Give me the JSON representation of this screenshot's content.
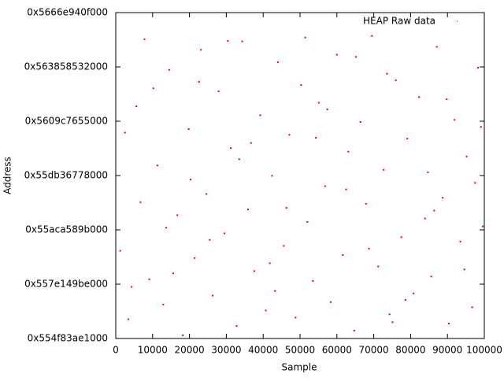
{
  "chart_data": {
    "type": "scatter",
    "x_label": "Sample",
    "y_label": "Address",
    "xlim": [
      0,
      100000
    ],
    "xticks": [
      0,
      10000,
      20000,
      30000,
      40000,
      50000,
      60000,
      70000,
      80000,
      90000,
      100000
    ],
    "ylim": [
      93800000000000,
      95000000000000
    ],
    "yticks": [
      {
        "value": 93800000000000,
        "label": "0x554f83ae1000"
      },
      {
        "value": 94000000000000,
        "label": "0x557e149be000"
      },
      {
        "value": 94200000000000,
        "label": "0x55aca589b000"
      },
      {
        "value": 94400000000000,
        "label": "0x55db36778000"
      },
      {
        "value": 94600000000000,
        "label": "0x5609c7655000"
      },
      {
        "value": 94800000000000,
        "label": "0x563858532000"
      },
      {
        "value": 95000000000000,
        "label": "0x5666e940f000"
      }
    ],
    "legend": "top-right",
    "series": [
      {
        "name": "HEAP Raw data",
        "color": "#ff0000",
        "x": [
          1200,
          3400,
          5600,
          7800,
          9100,
          11300,
          12900,
          14500,
          16700,
          18200,
          19800,
          21400,
          23100,
          24600,
          26300,
          27900,
          29500,
          31200,
          32800,
          34300,
          35900,
          37600,
          39200,
          40700,
          42400,
          44000,
          45600,
          47100,
          48800,
          50300,
          52000,
          53500,
          55100,
          56800,
          58300,
          60000,
          61600,
          63100,
          64700,
          66400,
          67900,
          69500,
          71200,
          72700,
          74300,
          76000,
          77500,
          79100,
          80800,
          82300,
          83900,
          85600,
          87100,
          88700,
          90400,
          91900,
          93500,
          95200,
          96700,
          98300,
          99600,
          2500,
          6700,
          10200,
          15600,
          20300,
          25500,
          30400,
          36700,
          41800,
          46300,
          51400,
          57400,
          62500,
          68700,
          73600,
          78600,
          84700,
          89800,
          94600,
          99100,
          4300,
          13700,
          22600,
          33500,
          43200,
          54300,
          65200,
          75100,
          86400,
          97500
        ],
        "values": [
          94123000000000.0,
          93871000000000.0,
          94655000000000.0,
          94902000000000.0,
          94018000000000.0,
          94437000000000.0,
          93925000000000.0,
          94789000000000.0,
          94254000000000.0,
          93812000000000.0,
          94571000000000.0,
          94096000000000.0,
          94863000000000.0,
          94332000000000.0,
          93958000000000.0,
          94710000000000.0,
          94187000000000.0,
          94501000000000.0,
          93846000000000.0,
          94894000000000.0,
          94275000000000.0,
          94048000000000.0,
          94622000000000.0,
          93903000000000.0,
          94399000000000.0,
          94817000000000.0,
          94141000000000.0,
          94550000000000.0,
          93877000000000.0,
          94733000000000.0,
          94229000000000.0,
          94012000000000.0,
          94668000000000.0,
          94361000000000.0,
          93934000000000.0,
          94845000000000.0,
          94107000000000.0,
          94488000000000.0,
          93829000000000.0,
          94597000000000.0,
          94296000000000.0,
          94914000000000.0,
          94065000000000.0,
          94421000000000.0,
          93889000000000.0,
          94751000000000.0,
          94173000000000.0,
          94536000000000.0,
          93966000000000.0,
          94689000000000.0,
          94242000000000.0,
          94028000000000.0,
          94874000000000.0,
          94318000000000.0,
          93855000000000.0,
          94605000000000.0,
          94157000000000.0,
          94470000000000.0,
          93915000000000.0,
          94797000000000.0,
          94213000000000.0,
          94558000000000.0,
          94302000000000.0,
          94721000000000.0,
          94040000000000.0,
          94385000000000.0,
          94163000000000.0,
          94896000000000.0,
          94520000000000.0,
          94077000000000.0,
          94281000000000.0,
          94908000000000.0,
          94644000000000.0,
          94349000000000.0,
          94131000000000.0,
          94775000000000.0,
          93942000000000.0,
          94412000000000.0,
          94681000000000.0,
          94054000000000.0,
          94579000000000.0,
          93990000000000.0,
          94208000000000.0,
          94745000000000.0,
          94460000000000.0,
          93975000000000.0,
          94539000000000.0,
          94837000000000.0,
          93860000000000.0,
          94271000000000.0,
          94373000000000.0
        ]
      }
    ]
  }
}
